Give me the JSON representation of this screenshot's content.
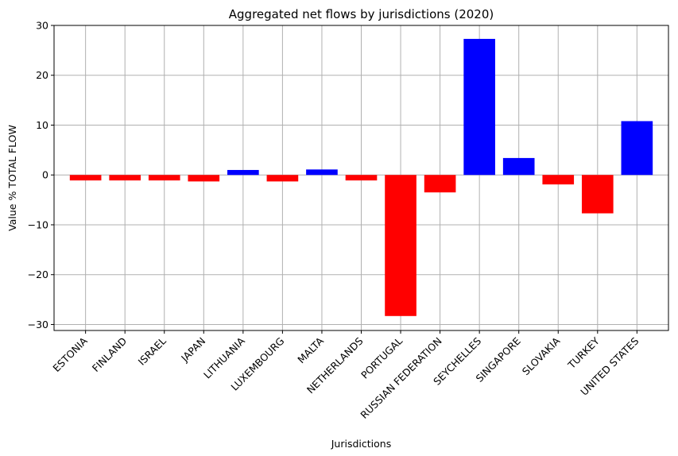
{
  "chart_data": {
    "type": "bar",
    "title": "Aggregated net flows by jurisdictions (2020)",
    "xlabel": "Jurisdictions",
    "ylabel": "Value % TOTAL FLOW",
    "ylim": [
      -31.2,
      30
    ],
    "yticks": [
      -30,
      -20,
      -10,
      0,
      10,
      20,
      30
    ],
    "ytick_labels": [
      "−30",
      "−20",
      "−10",
      "0",
      "10",
      "20",
      "30"
    ],
    "grid": true,
    "categories": [
      "ESTONIA",
      "FINLAND",
      "ISRAEL",
      "JAPAN",
      "LITHUANIA",
      "LUXEMBOURG",
      "MALTA",
      "NETHERLANDS",
      "PORTUGAL",
      "RUSSIAN FEDERATION",
      "SEYCHELLES",
      "SINGAPORE",
      "SLOVAKIA",
      "TURKEY",
      "UNITED STATES"
    ],
    "values": [
      -1.1,
      -1.1,
      -1.1,
      -1.3,
      1.0,
      -1.3,
      1.1,
      -1.1,
      -28.3,
      -3.5,
      27.3,
      3.4,
      -1.9,
      -7.7,
      10.8
    ],
    "colors": {
      "positive": "#0000ff",
      "negative": "#ff0000"
    }
  }
}
